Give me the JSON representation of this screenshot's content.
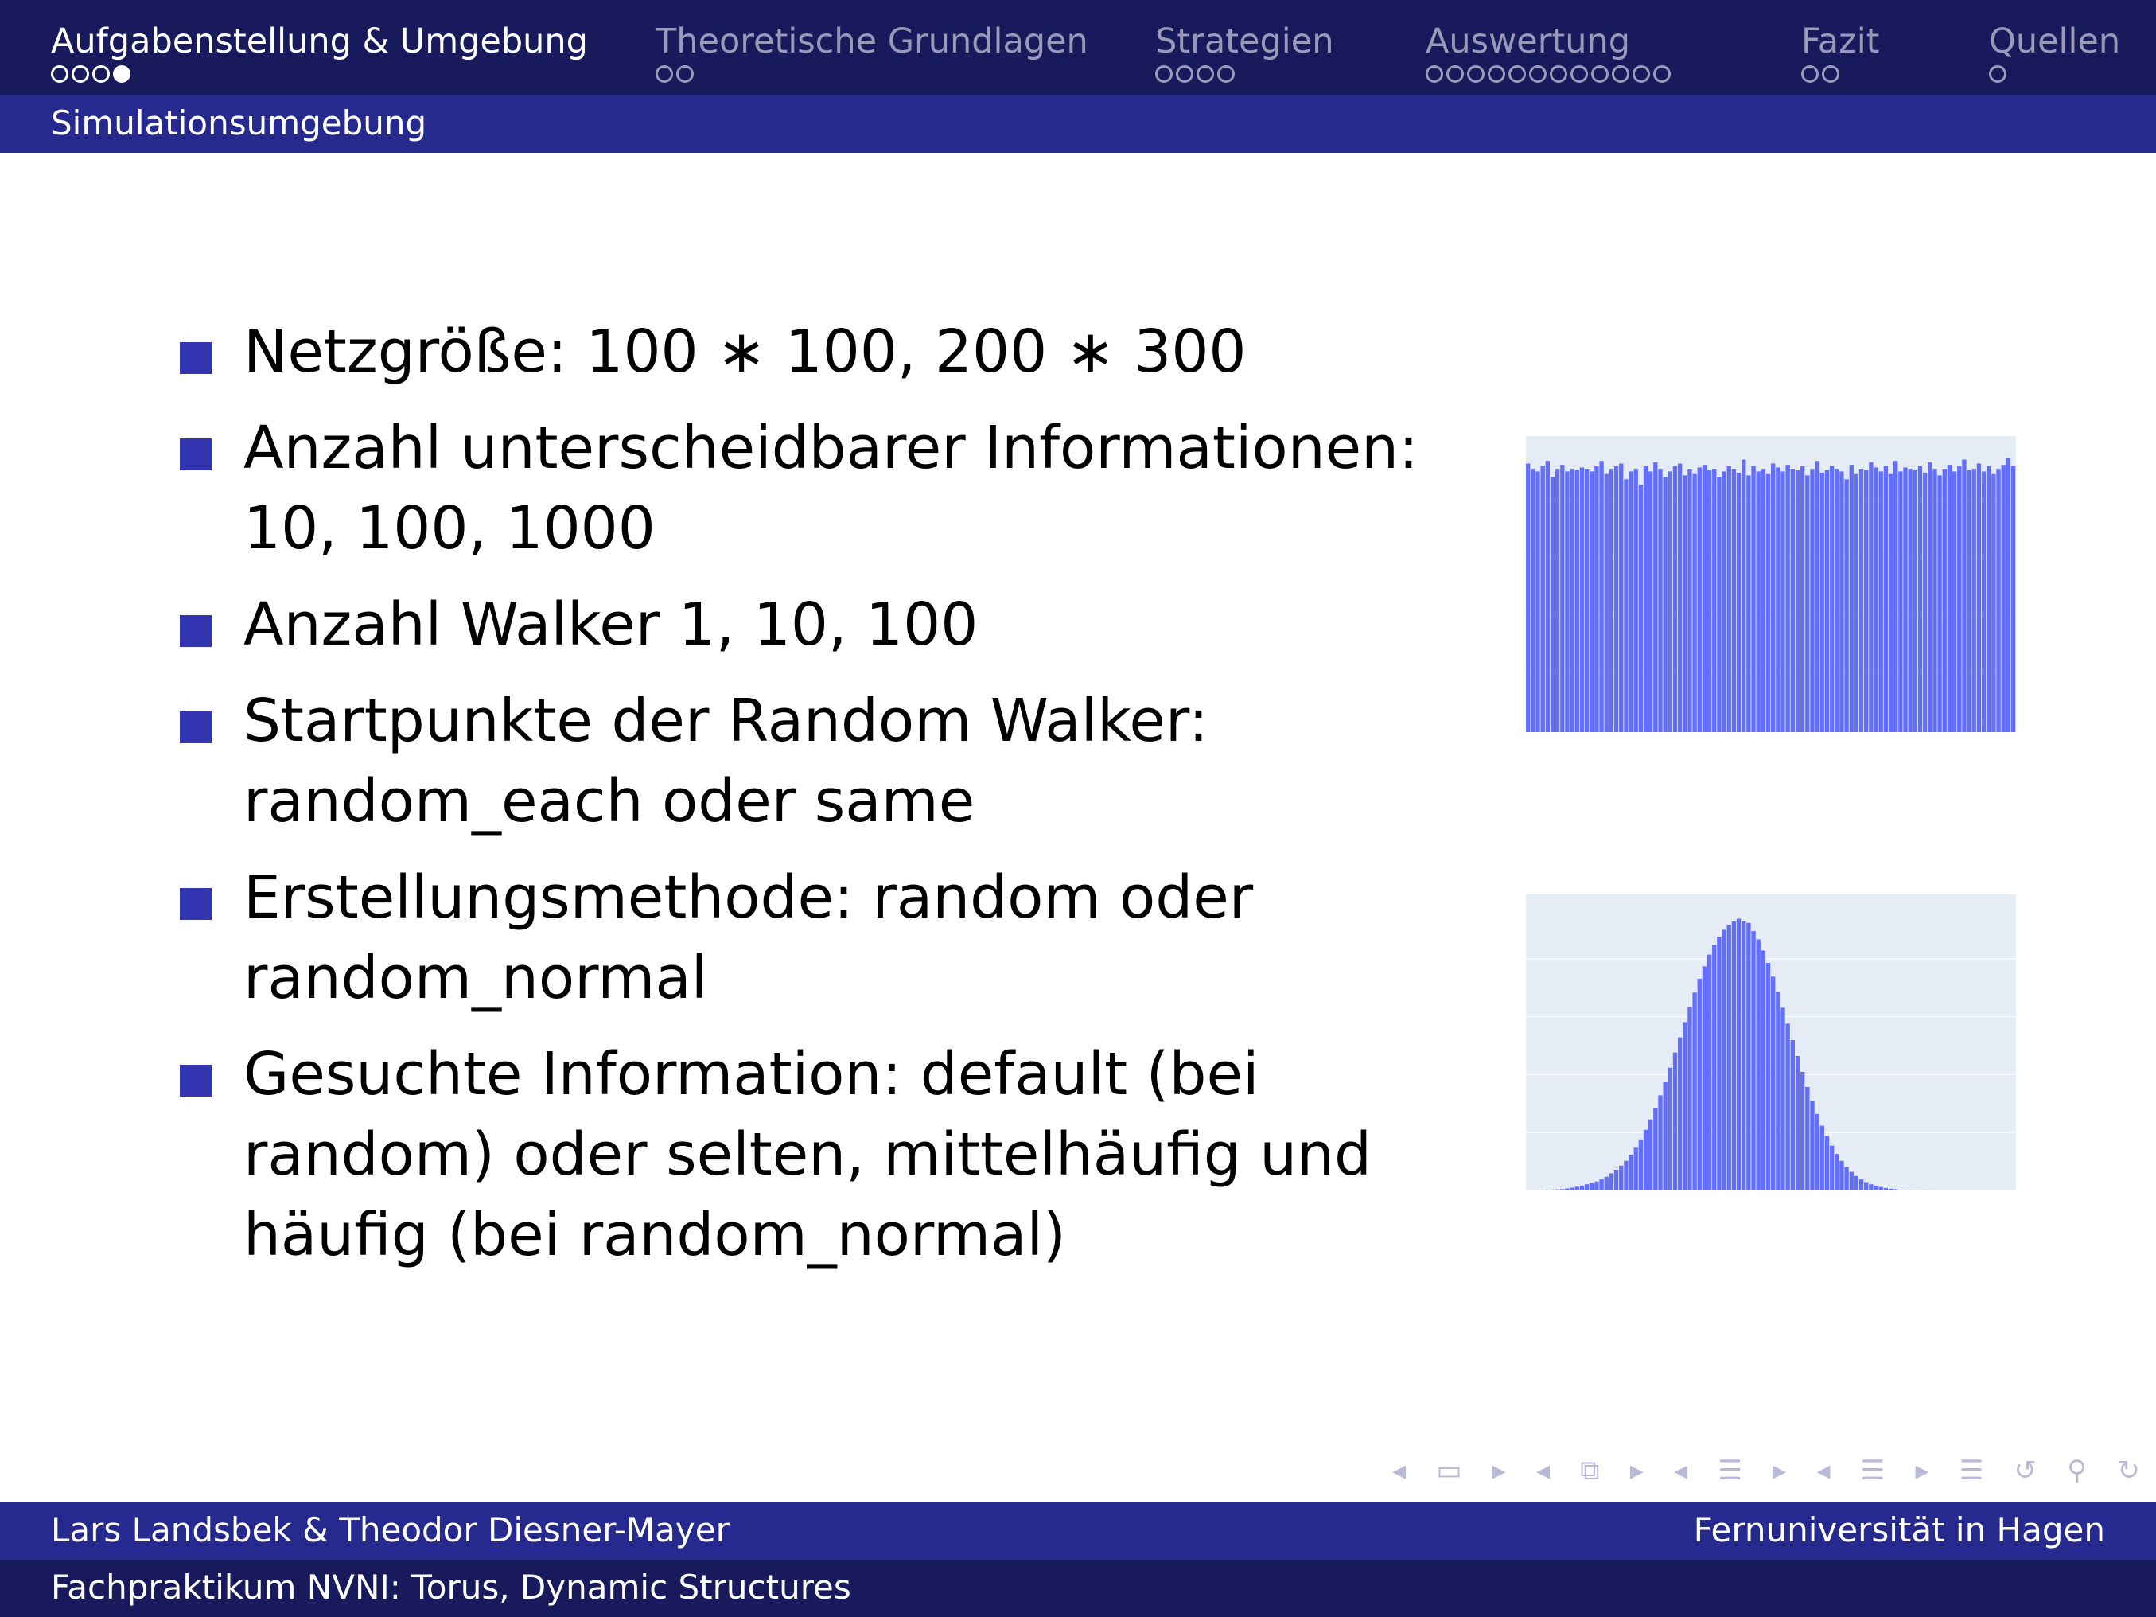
{
  "nav": {
    "sections": [
      {
        "label": "Aufgabenstellung & Umgebung",
        "dots": 4,
        "current_dot": 4,
        "active": true
      },
      {
        "label": "Theoretische Grundlagen",
        "dots": 2,
        "current_dot": 0,
        "active": false
      },
      {
        "label": "Strategien",
        "dots": 4,
        "current_dot": 0,
        "active": false
      },
      {
        "label": "Auswertung",
        "dots": 12,
        "current_dot": 0,
        "active": false
      },
      {
        "label": "Fazit",
        "dots": 2,
        "current_dot": 0,
        "active": false
      },
      {
        "label": "Quellen",
        "dots": 1,
        "current_dot": 0,
        "active": false
      }
    ]
  },
  "subsection": "Simulationsumgebung",
  "bullets": [
    {
      "text": "Netzgröße: 100 ∗ 100, 200 ∗ 300"
    },
    {
      "text": "Anzahl unterscheidbarer Informationen: 10, 100, 1000"
    },
    {
      "text": "Anzahl Walker 1, 10, 100"
    },
    {
      "text": "Startpunkte der Random Walker: random_each oder same"
    },
    {
      "text": "Erstellungsmethode: random oder random_normal"
    },
    {
      "text": "Gesuchte Information: default (bei random) oder selten, mittelhäufig und häufig (bei random_normal)"
    }
  ],
  "footer": {
    "authors": "Lars Landsbek & Theodor Diesner-Mayer",
    "institution": "Fernuniversität in Hagen",
    "course": "Fachpraktikum NVNI: Torus, Dynamic Structures"
  },
  "nav_icons": [
    "prev-frame-icon",
    "frame-icon",
    "next-frame-icon",
    "prev-subsection-icon",
    "subsection-icon",
    "next-subsection-icon",
    "prev-section-icon",
    "section-icon",
    "next-section-icon",
    "prev-page-icon",
    "page-icon",
    "next-page-icon",
    "back-icon",
    "search-icon",
    "forward-icon"
  ],
  "colors": {
    "topbar": "#181a5c",
    "subbar": "#262a8e",
    "bullet": "#3334b0",
    "bar": "#636efa",
    "plot_bg": "#e5ecf6"
  },
  "chart_data": [
    {
      "type": "bar",
      "title": "",
      "xlabel": "",
      "ylabel": "",
      "x_range": [
        0,
        100
      ],
      "y_range": [
        0,
        1100
      ],
      "values": [
        1020,
        1000,
        990,
        1010,
        1030,
        970,
        1000,
        1015,
        990,
        1000,
        995,
        1005,
        1000,
        990,
        1010,
        1030,
        980,
        1000,
        1010,
        1020,
        960,
        990,
        1000,
        940,
        1010,
        990,
        1025,
        1000,
        970,
        990,
        1010,
        1020,
        975,
        1000,
        980,
        1005,
        1015,
        995,
        1000,
        970,
        990,
        1010,
        1000,
        985,
        1035,
        975,
        1010,
        990,
        1000,
        980,
        1020,
        1005,
        990,
        1015,
        1000,
        995,
        1010,
        975,
        1000,
        1030,
        985,
        995,
        1010,
        1000,
        990,
        960,
        1015,
        980,
        1000,
        995,
        1025,
        1005,
        990,
        1010,
        980,
        1030,
        990,
        1005,
        1000,
        995,
        1010,
        985,
        1025,
        1000,
        975,
        1000,
        1015,
        990,
        1010,
        1035,
        995,
        1000,
        1020,
        990,
        1010,
        980,
        1000,
        1015,
        1040,
        1010
      ]
    },
    {
      "type": "bar",
      "title": "",
      "xlabel": "",
      "ylabel": "",
      "x_range": [
        0,
        100
      ],
      "y_range": [
        0,
        4200
      ],
      "values": [
        0,
        0,
        0,
        5,
        8,
        10,
        15,
        20,
        30,
        40,
        55,
        70,
        90,
        110,
        130,
        160,
        200,
        250,
        300,
        360,
        430,
        520,
        620,
        740,
        880,
        1030,
        1200,
        1380,
        1570,
        1780,
        2000,
        2220,
        2440,
        2660,
        2870,
        3070,
        3250,
        3420,
        3560,
        3680,
        3780,
        3850,
        3900,
        3940,
        3900,
        3880,
        3760,
        3640,
        3480,
        3300,
        3100,
        2880,
        2650,
        2420,
        2180,
        1950,
        1720,
        1500,
        1300,
        1110,
        940,
        790,
        650,
        530,
        430,
        340,
        270,
        210,
        160,
        120,
        90,
        70,
        50,
        35,
        25,
        18,
        12,
        8,
        5,
        3,
        2,
        1,
        1,
        0,
        0,
        0,
        0,
        0,
        0,
        0,
        0,
        0,
        0,
        0,
        0,
        0,
        0,
        0,
        0,
        0
      ]
    }
  ]
}
